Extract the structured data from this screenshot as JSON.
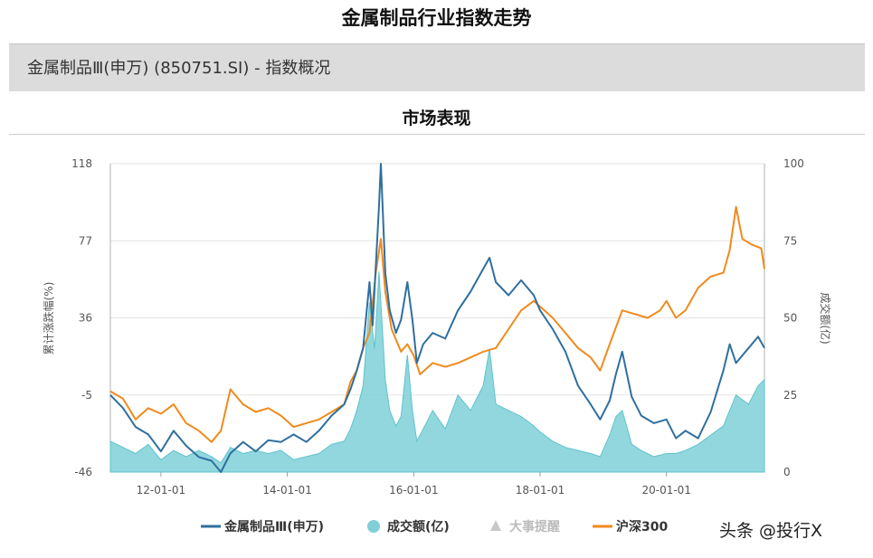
{
  "page_title": "金属制品行业指数走势",
  "header": {
    "text": "金属制品Ⅲ(申万) (850751.SI) - 指数概况"
  },
  "section_title": "市场表现",
  "watermark": "头条 @投行X",
  "colors": {
    "index_line": "#2f6f9f",
    "hs300_line": "#f08a1c",
    "volume_fill": "#7fd0d8",
    "event_marker": "#c8c8c8"
  },
  "chart_data": {
    "type": "line",
    "title": "",
    "xlabel": "",
    "ylabel": "累计涨跌幅(%)",
    "y2label": "成交额(亿)",
    "xlim": [
      2011.2,
      2021.55
    ],
    "ylim": [
      -46,
      118
    ],
    "y2lim": [
      0,
      100
    ],
    "yticks": [
      118,
      77,
      36,
      -5,
      -46
    ],
    "y2ticks": [
      100,
      75,
      50,
      25,
      0
    ],
    "xticks": [
      {
        "x": 2012.0,
        "label": "12-01-01"
      },
      {
        "x": 2014.0,
        "label": "14-01-01"
      },
      {
        "x": 2016.0,
        "label": "16-01-01"
      },
      {
        "x": 2018.0,
        "label": "18-01-01"
      },
      {
        "x": 2020.0,
        "label": "20-01-01"
      }
    ],
    "grid": true,
    "legend_position": "bottom",
    "legend": [
      {
        "key": "index",
        "label": "金属制品Ⅲ(申万)",
        "symbol": "line"
      },
      {
        "key": "volume",
        "label": "成交额(亿)",
        "symbol": "circle"
      },
      {
        "key": "events",
        "label": "大事提醒",
        "symbol": "triangle",
        "muted": true
      },
      {
        "key": "hs300",
        "label": "沪深300",
        "symbol": "line"
      }
    ],
    "series": [
      {
        "name": "金属制品Ⅲ(申万)",
        "axis": "left",
        "points": [
          [
            2011.2,
            -5
          ],
          [
            2011.4,
            -12
          ],
          [
            2011.6,
            -22
          ],
          [
            2011.8,
            -26
          ],
          [
            2012.0,
            -35
          ],
          [
            2012.2,
            -24
          ],
          [
            2012.4,
            -32
          ],
          [
            2012.6,
            -38
          ],
          [
            2012.8,
            -40
          ],
          [
            2012.95,
            -46
          ],
          [
            2013.1,
            -36
          ],
          [
            2013.3,
            -30
          ],
          [
            2013.5,
            -35
          ],
          [
            2013.7,
            -29
          ],
          [
            2013.9,
            -30
          ],
          [
            2014.1,
            -26
          ],
          [
            2014.3,
            -30
          ],
          [
            2014.5,
            -24
          ],
          [
            2014.7,
            -16
          ],
          [
            2014.9,
            -10
          ],
          [
            2015.0,
            -2
          ],
          [
            2015.1,
            8
          ],
          [
            2015.2,
            20
          ],
          [
            2015.3,
            55
          ],
          [
            2015.35,
            32
          ],
          [
            2015.45,
            95
          ],
          [
            2015.48,
            118
          ],
          [
            2015.55,
            60
          ],
          [
            2015.62,
            40
          ],
          [
            2015.72,
            28
          ],
          [
            2015.8,
            35
          ],
          [
            2015.9,
            55
          ],
          [
            2015.98,
            35
          ],
          [
            2016.05,
            12
          ],
          [
            2016.15,
            22
          ],
          [
            2016.3,
            28
          ],
          [
            2016.5,
            25
          ],
          [
            2016.7,
            40
          ],
          [
            2016.9,
            50
          ],
          [
            2017.1,
            62
          ],
          [
            2017.2,
            68
          ],
          [
            2017.3,
            55
          ],
          [
            2017.5,
            48
          ],
          [
            2017.7,
            56
          ],
          [
            2017.9,
            48
          ],
          [
            2018.0,
            40
          ],
          [
            2018.2,
            30
          ],
          [
            2018.4,
            18
          ],
          [
            2018.6,
            0
          ],
          [
            2018.8,
            -10
          ],
          [
            2018.95,
            -18
          ],
          [
            2019.1,
            -8
          ],
          [
            2019.2,
            6
          ],
          [
            2019.3,
            18
          ],
          [
            2019.45,
            -6
          ],
          [
            2019.6,
            -16
          ],
          [
            2019.8,
            -20
          ],
          [
            2020.0,
            -18
          ],
          [
            2020.15,
            -28
          ],
          [
            2020.3,
            -24
          ],
          [
            2020.5,
            -28
          ],
          [
            2020.7,
            -14
          ],
          [
            2020.9,
            8
          ],
          [
            2021.0,
            22
          ],
          [
            2021.1,
            12
          ],
          [
            2021.3,
            20
          ],
          [
            2021.45,
            26
          ],
          [
            2021.55,
            20
          ]
        ]
      },
      {
        "name": "沪深300",
        "axis": "left",
        "points": [
          [
            2011.2,
            -3
          ],
          [
            2011.4,
            -7
          ],
          [
            2011.6,
            -18
          ],
          [
            2011.8,
            -12
          ],
          [
            2012.0,
            -15
          ],
          [
            2012.2,
            -10
          ],
          [
            2012.4,
            -20
          ],
          [
            2012.6,
            -24
          ],
          [
            2012.8,
            -30
          ],
          [
            2012.95,
            -24
          ],
          [
            2013.1,
            -2
          ],
          [
            2013.3,
            -10
          ],
          [
            2013.5,
            -14
          ],
          [
            2013.7,
            -12
          ],
          [
            2013.9,
            -16
          ],
          [
            2014.1,
            -22
          ],
          [
            2014.3,
            -20
          ],
          [
            2014.5,
            -18
          ],
          [
            2014.7,
            -14
          ],
          [
            2014.9,
            -10
          ],
          [
            2015.0,
            2
          ],
          [
            2015.1,
            8
          ],
          [
            2015.2,
            20
          ],
          [
            2015.3,
            28
          ],
          [
            2015.4,
            60
          ],
          [
            2015.48,
            78
          ],
          [
            2015.55,
            50
          ],
          [
            2015.65,
            30
          ],
          [
            2015.8,
            18
          ],
          [
            2015.9,
            22
          ],
          [
            2016.0,
            16
          ],
          [
            2016.1,
            6
          ],
          [
            2016.3,
            12
          ],
          [
            2016.5,
            10
          ],
          [
            2016.7,
            12
          ],
          [
            2016.9,
            15
          ],
          [
            2017.1,
            18
          ],
          [
            2017.3,
            20
          ],
          [
            2017.5,
            30
          ],
          [
            2017.7,
            40
          ],
          [
            2017.9,
            45
          ],
          [
            2018.0,
            42
          ],
          [
            2018.2,
            36
          ],
          [
            2018.4,
            28
          ],
          [
            2018.6,
            20
          ],
          [
            2018.8,
            15
          ],
          [
            2018.95,
            8
          ],
          [
            2019.1,
            22
          ],
          [
            2019.3,
            40
          ],
          [
            2019.5,
            38
          ],
          [
            2019.7,
            36
          ],
          [
            2019.9,
            40
          ],
          [
            2020.0,
            45
          ],
          [
            2020.15,
            36
          ],
          [
            2020.3,
            40
          ],
          [
            2020.5,
            52
          ],
          [
            2020.7,
            58
          ],
          [
            2020.9,
            60
          ],
          [
            2021.0,
            72
          ],
          [
            2021.1,
            95
          ],
          [
            2021.2,
            78
          ],
          [
            2021.35,
            75
          ],
          [
            2021.5,
            73
          ],
          [
            2021.55,
            62
          ]
        ]
      },
      {
        "name": "成交额(亿)",
        "axis": "right",
        "type": "area",
        "points": [
          [
            2011.2,
            10
          ],
          [
            2011.4,
            8
          ],
          [
            2011.6,
            6
          ],
          [
            2011.8,
            9
          ],
          [
            2012.0,
            4
          ],
          [
            2012.2,
            7
          ],
          [
            2012.4,
            5
          ],
          [
            2012.6,
            7
          ],
          [
            2012.8,
            5
          ],
          [
            2012.95,
            3
          ],
          [
            2013.1,
            8
          ],
          [
            2013.3,
            6
          ],
          [
            2013.5,
            7
          ],
          [
            2013.7,
            6
          ],
          [
            2013.9,
            7
          ],
          [
            2014.1,
            4
          ],
          [
            2014.3,
            5
          ],
          [
            2014.5,
            6
          ],
          [
            2014.7,
            9
          ],
          [
            2014.9,
            10
          ],
          [
            2015.0,
            14
          ],
          [
            2015.1,
            20
          ],
          [
            2015.2,
            28
          ],
          [
            2015.3,
            55
          ],
          [
            2015.38,
            40
          ],
          [
            2015.45,
            65
          ],
          [
            2015.5,
            48
          ],
          [
            2015.55,
            30
          ],
          [
            2015.62,
            20
          ],
          [
            2015.72,
            15
          ],
          [
            2015.8,
            18
          ],
          [
            2015.9,
            38
          ],
          [
            2015.98,
            20
          ],
          [
            2016.05,
            10
          ],
          [
            2016.15,
            14
          ],
          [
            2016.3,
            20
          ],
          [
            2016.5,
            14
          ],
          [
            2016.7,
            25
          ],
          [
            2016.9,
            20
          ],
          [
            2017.1,
            28
          ],
          [
            2017.2,
            40
          ],
          [
            2017.3,
            22
          ],
          [
            2017.5,
            20
          ],
          [
            2017.7,
            18
          ],
          [
            2017.9,
            15
          ],
          [
            2018.0,
            13
          ],
          [
            2018.2,
            10
          ],
          [
            2018.4,
            8
          ],
          [
            2018.6,
            7
          ],
          [
            2018.8,
            6
          ],
          [
            2018.95,
            5
          ],
          [
            2019.1,
            12
          ],
          [
            2019.2,
            18
          ],
          [
            2019.3,
            20
          ],
          [
            2019.45,
            9
          ],
          [
            2019.6,
            7
          ],
          [
            2019.8,
            5
          ],
          [
            2020.0,
            6
          ],
          [
            2020.15,
            6
          ],
          [
            2020.3,
            7
          ],
          [
            2020.5,
            9
          ],
          [
            2020.7,
            12
          ],
          [
            2020.9,
            15
          ],
          [
            2021.0,
            20
          ],
          [
            2021.1,
            25
          ],
          [
            2021.3,
            22
          ],
          [
            2021.45,
            28
          ],
          [
            2021.55,
            30
          ]
        ]
      }
    ]
  }
}
